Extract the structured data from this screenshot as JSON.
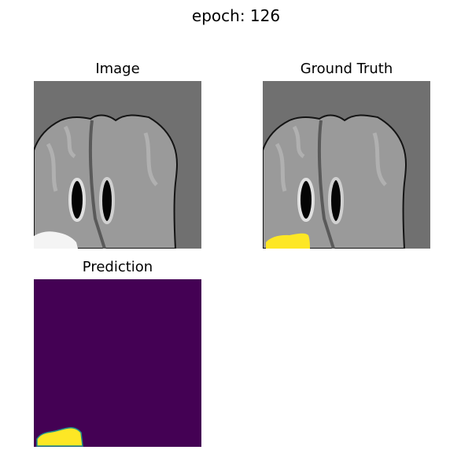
{
  "figure": {
    "title": "epoch: 126"
  },
  "panels": [
    {
      "title": "Image"
    },
    {
      "title": "Ground Truth"
    },
    {
      "title": "Prediction"
    }
  ],
  "colors": {
    "background_gray": "#707070",
    "brain_gray": "#9a9a9a",
    "lesion_white": "#f4f4f4",
    "mask_yellow": "#fde725",
    "mask_background_purple": "#440154",
    "boundary_teal": "#21918c"
  }
}
